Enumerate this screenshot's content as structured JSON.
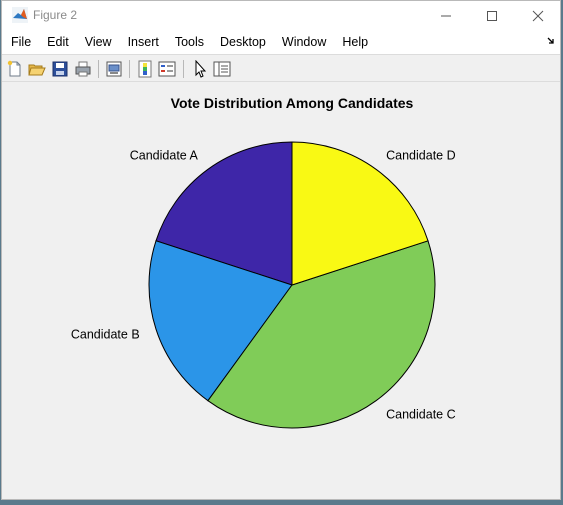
{
  "window": {
    "title": "Figure 2"
  },
  "menu": {
    "items": [
      "File",
      "Edit",
      "View",
      "Insert",
      "Tools",
      "Desktop",
      "Window",
      "Help"
    ]
  },
  "toolbar": {
    "icons": [
      "new-figure-icon",
      "open-icon",
      "save-icon",
      "print-icon",
      "print-preview-icon",
      "colorbar-icon",
      "legend-icon",
      "pointer-icon",
      "property-inspector-icon"
    ]
  },
  "chart_data": {
    "type": "pie",
    "title": "Vote Distribution Among Candidates",
    "categories": [
      "Candidate A",
      "Candidate B",
      "Candidate C",
      "Candidate D"
    ],
    "values": [
      20,
      20,
      40,
      20
    ],
    "colors": [
      "#3e26a8",
      "#2b95e8",
      "#80cc58",
      "#f9f914"
    ]
  }
}
